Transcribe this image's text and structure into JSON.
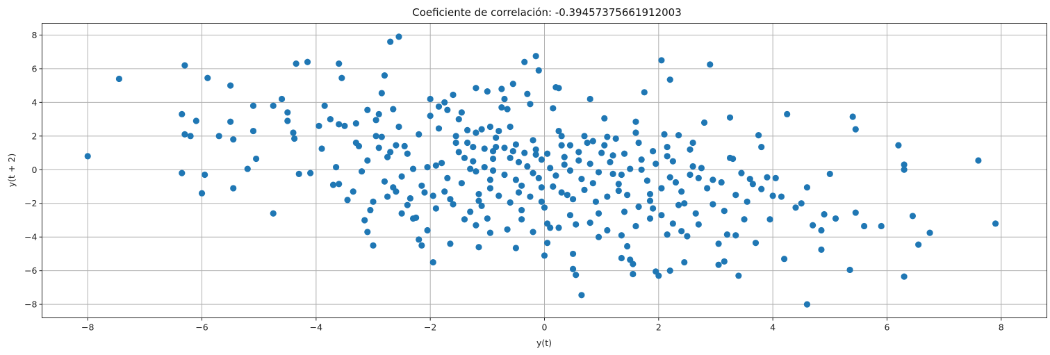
{
  "chart_data": {
    "type": "scatter",
    "title": "Coeficiente de correlación: -0.39457375661912003",
    "xlabel": "y(t)",
    "ylabel": "y(t + 2)",
    "xlim": [
      -8.8,
      8.8
    ],
    "ylim": [
      -8.8,
      8.7
    ],
    "xticks": [
      -8,
      -6,
      -4,
      -2,
      0,
      2,
      4,
      6,
      8
    ],
    "yticks": [
      -8,
      -6,
      -4,
      -2,
      0,
      2,
      4,
      6,
      8
    ],
    "grid": true,
    "marker_color": "#1f77b4",
    "points": [
      [
        -8.0,
        0.8
      ],
      [
        -7.45,
        5.4
      ],
      [
        -6.3,
        6.2
      ],
      [
        -6.35,
        3.3
      ],
      [
        -6.3,
        2.1
      ],
      [
        -6.35,
        -0.2
      ],
      [
        -6.2,
        2.0
      ],
      [
        -6.1,
        2.9
      ],
      [
        -5.95,
        -0.3
      ],
      [
        -6.0,
        -1.4
      ],
      [
        -5.9,
        5.45
      ],
      [
        -5.5,
        5.0
      ],
      [
        -5.45,
        1.8
      ],
      [
        -5.5,
        2.85
      ],
      [
        -5.45,
        -1.1
      ],
      [
        -5.7,
        2.0
      ],
      [
        -5.2,
        0.05
      ],
      [
        -5.1,
        3.8
      ],
      [
        -5.1,
        2.3
      ],
      [
        -5.05,
        0.65
      ],
      [
        -4.75,
        3.8
      ],
      [
        -4.75,
        -2.6
      ],
      [
        -4.6,
        4.2
      ],
      [
        -4.5,
        3.4
      ],
      [
        -4.5,
        2.9
      ],
      [
        -4.4,
        2.2
      ],
      [
        -4.38,
        1.85
      ],
      [
        -4.35,
        6.3
      ],
      [
        -4.3,
        -0.25
      ],
      [
        -4.15,
        6.4
      ],
      [
        -3.95,
        2.6
      ],
      [
        -3.85,
        3.8
      ],
      [
        -3.75,
        3.0
      ],
      [
        -3.65,
        0.15
      ],
      [
        -3.6,
        -0.85
      ],
      [
        -3.55,
        5.45
      ],
      [
        -3.5,
        2.6
      ],
      [
        -3.45,
        -1.8
      ],
      [
        -3.6,
        6.3
      ],
      [
        -3.3,
        2.75
      ],
      [
        -3.25,
        1.4
      ],
      [
        -3.2,
        -0.1
      ],
      [
        -3.15,
        -3.0
      ],
      [
        -3.1,
        -3.7
      ],
      [
        -3.0,
        -1.9
      ],
      [
        -2.95,
        2.0
      ],
      [
        -2.85,
        1.95
      ],
      [
        -2.9,
        1.3
      ],
      [
        -2.7,
        1.05
      ],
      [
        -2.65,
        -1.05
      ],
      [
        -2.9,
        3.3
      ],
      [
        -2.85,
        4.55
      ],
      [
        -2.8,
        5.6
      ],
      [
        -2.65,
        3.6
      ],
      [
        -2.55,
        2.55
      ],
      [
        -2.45,
        1.4
      ],
      [
        -2.4,
        0.95
      ],
      [
        -2.35,
        -1.7
      ],
      [
        -2.3,
        -2.9
      ],
      [
        -2.2,
        -4.15
      ],
      [
        -2.15,
        -4.5
      ],
      [
        -2.05,
        -3.6
      ],
      [
        -1.95,
        -5.5
      ],
      [
        -2.05,
        0.15
      ],
      [
        -1.9,
        0.25
      ],
      [
        -1.8,
        0.4
      ],
      [
        -1.75,
        -1.3
      ],
      [
        -1.65,
        -1.75
      ],
      [
        -1.55,
        2.0
      ],
      [
        -1.5,
        3.0
      ],
      [
        -1.45,
        3.4
      ],
      [
        -1.35,
        1.6
      ],
      [
        -1.3,
        0.05
      ],
      [
        -1.2,
        -0.1
      ],
      [
        -1.15,
        -1.85
      ],
      [
        -1.1,
        -2.15
      ],
      [
        -1.0,
        -2.9
      ],
      [
        -0.95,
        -1.1
      ],
      [
        -0.9,
        0.65
      ],
      [
        -0.85,
        1.35
      ],
      [
        -0.8,
        2.3
      ],
      [
        -0.75,
        3.7
      ],
      [
        -0.7,
        4.2
      ],
      [
        -0.65,
        3.6
      ],
      [
        -0.6,
        2.55
      ],
      [
        -0.55,
        1.1
      ],
      [
        -0.5,
        -0.6
      ],
      [
        -0.45,
        -1.35
      ],
      [
        -0.4,
        -2.4
      ],
      [
        -0.35,
        6.4
      ],
      [
        -0.3,
        4.5
      ],
      [
        -0.25,
        3.9
      ],
      [
        -0.2,
        1.75
      ],
      [
        -0.15,
        0.9
      ],
      [
        -0.1,
        -0.5
      ],
      [
        -0.05,
        -1.05
      ],
      [
        0.0,
        -2.25
      ],
      [
        0.05,
        -3.2
      ],
      [
        0.1,
        -3.45
      ],
      [
        0.15,
        3.65
      ],
      [
        0.2,
        4.9
      ],
      [
        0.25,
        2.3
      ],
      [
        0.3,
        1.45
      ],
      [
        0.35,
        0.3
      ],
      [
        0.4,
        -1.5
      ],
      [
        0.45,
        -2.7
      ],
      [
        0.5,
        -5.9
      ],
      [
        0.55,
        -6.25
      ],
      [
        0.65,
        -7.45
      ],
      [
        0.7,
        2.0
      ],
      [
        0.75,
        1.6
      ],
      [
        0.8,
        0.35
      ],
      [
        0.85,
        -0.8
      ],
      [
        0.9,
        -1.9
      ],
      [
        0.95,
        -4.0
      ],
      [
        1.05,
        3.05
      ],
      [
        1.1,
        1.95
      ],
      [
        1.15,
        0.45
      ],
      [
        1.2,
        -0.25
      ],
      [
        1.3,
        -1.25
      ],
      [
        1.4,
        -2.5
      ],
      [
        1.45,
        -4.55
      ],
      [
        1.5,
        -5.35
      ],
      [
        1.55,
        -6.2
      ],
      [
        1.6,
        2.85
      ],
      [
        1.65,
        1.6
      ],
      [
        1.7,
        0.6
      ],
      [
        1.75,
        4.6
      ],
      [
        1.8,
        -0.65
      ],
      [
        1.85,
        -1.85
      ],
      [
        1.9,
        -2.3
      ],
      [
        2.0,
        -6.3
      ],
      [
        2.05,
        6.5
      ],
      [
        2.1,
        2.1
      ],
      [
        2.15,
        1.35
      ],
      [
        2.2,
        5.35
      ],
      [
        2.25,
        0.5
      ],
      [
        2.3,
        -0.75
      ],
      [
        2.35,
        -2.1
      ],
      [
        2.45,
        -5.5
      ],
      [
        2.5,
        -3.95
      ],
      [
        2.55,
        1.2
      ],
      [
        2.6,
        0.2
      ],
      [
        2.7,
        -0.5
      ],
      [
        2.8,
        2.8
      ],
      [
        2.9,
        6.25
      ],
      [
        2.95,
        -2.05
      ],
      [
        3.05,
        -4.4
      ],
      [
        3.15,
        -5.45
      ],
      [
        3.25,
        3.1
      ],
      [
        3.3,
        0.65
      ],
      [
        3.35,
        -3.9
      ],
      [
        3.4,
        -6.3
      ],
      [
        3.5,
        -2.95
      ],
      [
        3.6,
        -0.55
      ],
      [
        3.7,
        -4.35
      ],
      [
        3.75,
        2.05
      ],
      [
        3.8,
        1.35
      ],
      [
        3.9,
        -0.45
      ],
      [
        3.95,
        -2.95
      ],
      [
        4.05,
        -0.5
      ],
      [
        4.15,
        -1.6
      ],
      [
        4.2,
        -5.3
      ],
      [
        4.25,
        3.3
      ],
      [
        4.4,
        -2.25
      ],
      [
        4.5,
        -2.0
      ],
      [
        4.6,
        -1.05
      ],
      [
        4.6,
        -8.0
      ],
      [
        4.7,
        -3.3
      ],
      [
        4.85,
        -3.6
      ],
      [
        4.85,
        -4.75
      ],
      [
        4.9,
        -2.65
      ],
      [
        5.0,
        -0.25
      ],
      [
        5.1,
        -2.9
      ],
      [
        5.35,
        -5.95
      ],
      [
        5.4,
        3.15
      ],
      [
        5.45,
        2.4
      ],
      [
        5.45,
        -2.55
      ],
      [
        5.6,
        -3.35
      ],
      [
        5.9,
        -3.35
      ],
      [
        6.2,
        1.45
      ],
      [
        6.3,
        0.3
      ],
      [
        6.3,
        0.0
      ],
      [
        6.3,
        -6.35
      ],
      [
        6.45,
        -2.75
      ],
      [
        6.55,
        -4.45
      ],
      [
        6.75,
        -3.75
      ],
      [
        7.6,
        0.55
      ],
      [
        7.9,
        -3.2
      ],
      [
        -2.0,
        4.2
      ],
      [
        -1.85,
        3.75
      ],
      [
        -1.75,
        4.0
      ],
      [
        -1.6,
        4.45
      ],
      [
        -1.2,
        4.85
      ],
      [
        -1.0,
        4.65
      ],
      [
        -0.75,
        4.8
      ],
      [
        -0.55,
        5.1
      ],
      [
        -0.15,
        6.75
      ],
      [
        -0.1,
        5.9
      ],
      [
        0.25,
        4.85
      ],
      [
        0.8,
        4.2
      ],
      [
        -2.7,
        7.6
      ],
      [
        -2.55,
        7.9
      ],
      [
        -1.2,
        2.2
      ],
      [
        -1.1,
        2.4
      ],
      [
        -0.95,
        2.55
      ],
      [
        -0.85,
        1.9
      ],
      [
        -1.5,
        1.05
      ],
      [
        -1.4,
        0.7
      ],
      [
        -1.25,
        0.5
      ],
      [
        -1.05,
        0.15
      ],
      [
        -0.9,
        -0.05
      ],
      [
        -0.7,
        -0.3
      ],
      [
        -0.6,
        0.7
      ],
      [
        -0.45,
        0.45
      ],
      [
        -0.3,
        0.2
      ],
      [
        -0.2,
        -0.2
      ],
      [
        -0.05,
        0.6
      ],
      [
        0.1,
        0.1
      ],
      [
        0.2,
        -0.35
      ],
      [
        0.35,
        0.75
      ],
      [
        0.45,
        -0.05
      ],
      [
        0.6,
        0.55
      ],
      [
        0.65,
        -0.55
      ],
      [
        0.95,
        -0.15
      ],
      [
        1.0,
        1.0
      ],
      [
        1.2,
        0.85
      ],
      [
        1.35,
        -0.3
      ],
      [
        1.5,
        0.05
      ],
      [
        1.7,
        0.0
      ],
      [
        1.95,
        0.35
      ],
      [
        2.05,
        -1.1
      ],
      [
        2.2,
        -0.45
      ],
      [
        2.4,
        -1.3
      ],
      [
        2.55,
        -0.3
      ],
      [
        2.75,
        0.1
      ],
      [
        2.95,
        -0.6
      ],
      [
        3.1,
        -0.75
      ],
      [
        3.25,
        0.7
      ],
      [
        3.45,
        -0.2
      ],
      [
        3.65,
        -0.85
      ],
      [
        3.8,
        -1.15
      ],
      [
        4.0,
        -1.55
      ],
      [
        -3.9,
        1.25
      ],
      [
        -3.3,
        1.6
      ],
      [
        -3.1,
        0.55
      ],
      [
        -2.75,
        0.75
      ],
      [
        -2.5,
        -0.4
      ],
      [
        -2.3,
        0.05
      ],
      [
        -2.15,
        -0.95
      ],
      [
        -1.95,
        -1.55
      ],
      [
        -1.7,
        -0.5
      ],
      [
        -1.45,
        -0.8
      ],
      [
        -1.3,
        -2.5
      ],
      [
        -1.15,
        -1.45
      ],
      [
        -0.95,
        -0.6
      ],
      [
        -0.8,
        -1.55
      ],
      [
        -0.6,
        -1.95
      ],
      [
        -0.4,
        -0.95
      ],
      [
        -0.25,
        -1.6
      ],
      [
        -0.05,
        -1.9
      ],
      [
        0.15,
        -1.0
      ],
      [
        0.3,
        -1.35
      ],
      [
        0.5,
        -1.75
      ],
      [
        0.7,
        -1.2
      ],
      [
        0.95,
        -2.6
      ],
      [
        1.1,
        -1.6
      ],
      [
        1.3,
        -0.85
      ],
      [
        1.45,
        -1.5
      ],
      [
        1.65,
        -2.2
      ],
      [
        1.85,
        -1.45
      ],
      [
        2.05,
        -2.7
      ],
      [
        2.25,
        -3.2
      ],
      [
        2.45,
        -2.0
      ],
      [
        2.65,
        -2.6
      ],
      [
        2.85,
        -1.1
      ],
      [
        3.15,
        -2.45
      ],
      [
        3.35,
        -1.5
      ],
      [
        3.55,
        -1.9
      ],
      [
        -3.6,
        2.7
      ],
      [
        -3.1,
        3.55
      ],
      [
        -2.95,
        2.95
      ],
      [
        -2.6,
        1.45
      ],
      [
        -2.2,
        2.1
      ],
      [
        -2.0,
        3.2
      ],
      [
        -1.85,
        2.45
      ],
      [
        -1.7,
        3.55
      ],
      [
        -1.55,
        1.6
      ],
      [
        -1.35,
        2.35
      ],
      [
        -1.25,
        1.35
      ],
      [
        -1.05,
        1.25
      ],
      [
        -0.9,
        1.1
      ],
      [
        -0.7,
        1.3
      ],
      [
        -0.5,
        1.5
      ],
      [
        -0.35,
        1.0
      ],
      [
        -0.15,
        1.2
      ],
      [
        0.05,
        0.95
      ],
      [
        0.3,
        2.0
      ],
      [
        0.45,
        1.45
      ],
      [
        0.6,
        1.05
      ],
      [
        0.85,
        1.7
      ],
      [
        1.05,
        1.45
      ],
      [
        1.25,
        1.85
      ],
      [
        1.4,
        0.95
      ],
      [
        1.6,
        2.2
      ],
      [
        1.9,
        1.1
      ],
      [
        2.15,
        0.8
      ],
      [
        2.35,
        2.05
      ],
      [
        2.6,
        1.6
      ],
      [
        -2.8,
        -0.7
      ],
      [
        -2.6,
        -1.3
      ],
      [
        -2.4,
        -2.1
      ],
      [
        -2.25,
        -2.85
      ],
      [
        -2.1,
        -1.35
      ],
      [
        -1.9,
        -2.3
      ],
      [
        -1.6,
        -2.05
      ],
      [
        -1.4,
        -2.95
      ],
      [
        -1.2,
        -3.3
      ],
      [
        -0.95,
        -3.75
      ],
      [
        -0.65,
        -3.55
      ],
      [
        -0.4,
        -2.95
      ],
      [
        -0.2,
        -3.7
      ],
      [
        0.05,
        -4.35
      ],
      [
        0.25,
        -3.45
      ],
      [
        0.55,
        -3.25
      ],
      [
        0.8,
        -3.15
      ],
      [
        1.1,
        -3.6
      ],
      [
        1.35,
        -3.9
      ],
      [
        1.6,
        -3.35
      ],
      [
        1.85,
        -2.9
      ],
      [
        2.15,
        -3.85
      ],
      [
        2.4,
        -3.65
      ],
      [
        2.7,
        -3.25
      ],
      [
        -4.1,
        -0.2
      ],
      [
        -3.7,
        -0.9
      ],
      [
        -3.35,
        -1.3
      ],
      [
        -3.05,
        -2.4
      ],
      [
        -2.75,
        -1.6
      ],
      [
        -3.0,
        -4.5
      ],
      [
        -2.5,
        -2.6
      ],
      [
        -1.65,
        -4.4
      ],
      [
        -1.15,
        -4.6
      ],
      [
        -0.5,
        -4.65
      ],
      [
        0.0,
        -5.1
      ],
      [
        0.5,
        -5.0
      ],
      [
        1.35,
        -5.25
      ],
      [
        1.55,
        -5.6
      ],
      [
        1.95,
        -6.05
      ],
      [
        2.2,
        -6.0
      ],
      [
        3.2,
        -3.85
      ],
      [
        3.05,
        -5.65
      ]
    ]
  }
}
